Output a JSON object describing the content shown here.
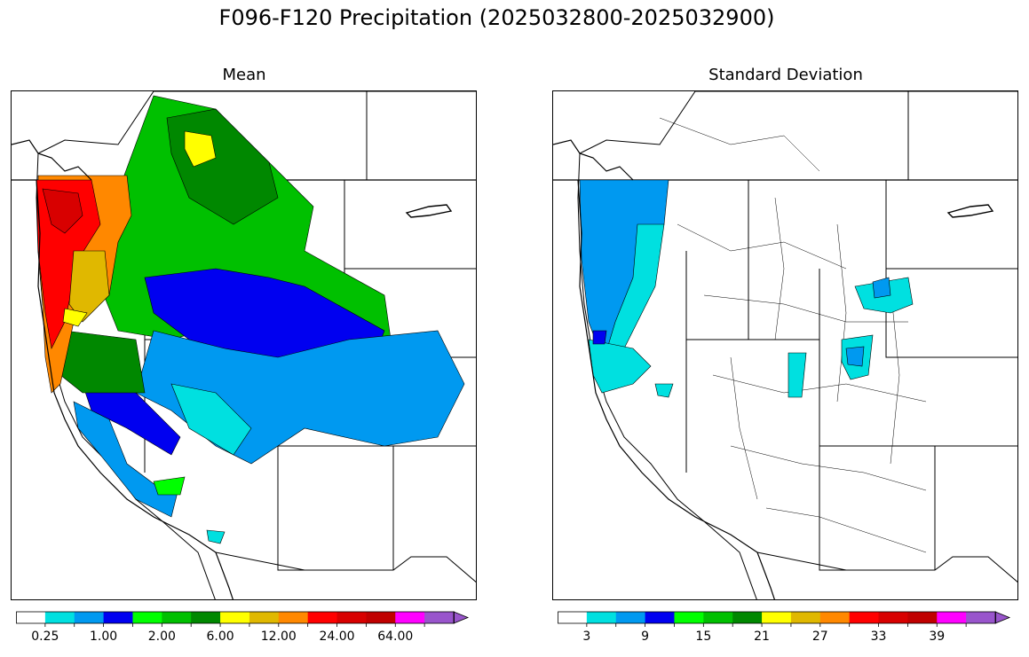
{
  "title": "F096-F120 Precipitation (2025032800-2025032900)",
  "panels": [
    {
      "title": "Mean",
      "colorbar": {
        "colors": [
          "#ffffff",
          "#00e0e0",
          "#0099f0",
          "#0000f0",
          "#00ff00",
          "#00c000",
          "#008800",
          "#ffff00",
          "#e0b800",
          "#ff8800",
          "#ff0000",
          "#d80000",
          "#c00000",
          "#ff00ff",
          "#9955cc"
        ],
        "tick_labels": [
          "0.25",
          "1.00",
          "2.00",
          "6.00",
          "12.00",
          "24.00",
          "64.00"
        ]
      }
    },
    {
      "title": "Standard Deviation",
      "colorbar": {
        "colors": [
          "#ffffff",
          "#00e0e0",
          "#0099f0",
          "#0000f0",
          "#00ff00",
          "#00c000",
          "#008800",
          "#ffff00",
          "#e0b800",
          "#ff8800",
          "#ff0000",
          "#d80000",
          "#c00000",
          "#ff00ff",
          "#9955cc"
        ],
        "tick_labels": [
          "3",
          "9",
          "15",
          "21",
          "27",
          "33",
          "39"
        ]
      }
    }
  ]
}
